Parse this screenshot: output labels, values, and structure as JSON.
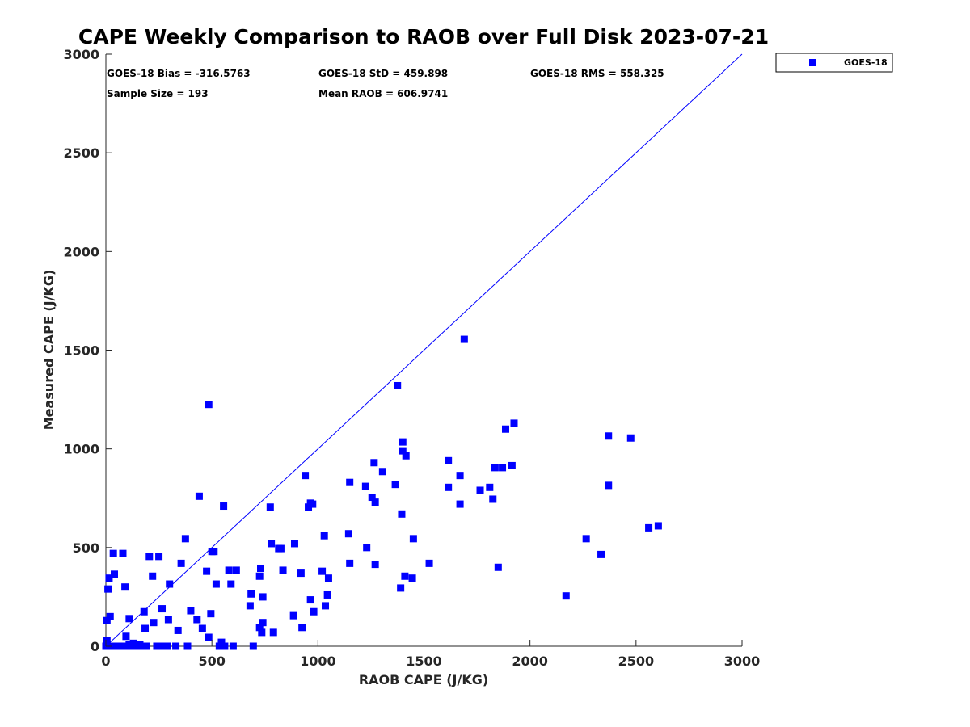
{
  "chart_data": {
    "type": "scatter",
    "title": "CAPE Weekly Comparison to RAOB over Full Disk 2023-07-21",
    "xlabel": "RAOB CAPE (J/KG)",
    "ylabel": "Measured CAPE (J/KG)",
    "xlim": [
      0,
      3000
    ],
    "ylim": [
      0,
      3000
    ],
    "x_ticks": [
      "0",
      "500",
      "1000",
      "1500",
      "2000",
      "2500",
      "3000"
    ],
    "y_ticks": [
      "0",
      "500",
      "1000",
      "1500",
      "2000",
      "2500",
      "3000"
    ],
    "grid": false,
    "legend_position": "outside top-right",
    "reference_line": {
      "x": [
        0,
        3000
      ],
      "y": [
        0,
        3000
      ],
      "color": "#0000ff"
    },
    "stats": [
      {
        "text": "GOES-18 Bias = -316.5763"
      },
      {
        "text": "GOES-18 StD = 459.898"
      },
      {
        "text": "GOES-18 RMS = 558.325"
      },
      {
        "text": "Sample Size = 193"
      },
      {
        "text": "Mean RAOB = 606.9741"
      }
    ],
    "series": [
      {
        "name": "GOES-18",
        "color": "#0000ff",
        "marker": "square",
        "points": [
          [
            0,
            0
          ],
          [
            5,
            30
          ],
          [
            5,
            130
          ],
          [
            10,
            290
          ],
          [
            15,
            345
          ],
          [
            20,
            150
          ],
          [
            25,
            0
          ],
          [
            30,
            0
          ],
          [
            35,
            470
          ],
          [
            40,
            365
          ],
          [
            45,
            0
          ],
          [
            50,
            0
          ],
          [
            60,
            0
          ],
          [
            70,
            0
          ],
          [
            80,
            470
          ],
          [
            85,
            0
          ],
          [
            90,
            300
          ],
          [
            95,
            50
          ],
          [
            100,
            0
          ],
          [
            110,
            140
          ],
          [
            110,
            10
          ],
          [
            120,
            0
          ],
          [
            130,
            15
          ],
          [
            140,
            0
          ],
          [
            150,
            0
          ],
          [
            160,
            10
          ],
          [
            170,
            0
          ],
          [
            180,
            175
          ],
          [
            185,
            90
          ],
          [
            190,
            0
          ],
          [
            205,
            455
          ],
          [
            220,
            355
          ],
          [
            225,
            120
          ],
          [
            240,
            0
          ],
          [
            250,
            455
          ],
          [
            260,
            0
          ],
          [
            265,
            190
          ],
          [
            280,
            0
          ],
          [
            290,
            0
          ],
          [
            295,
            135
          ],
          [
            300,
            315
          ],
          [
            330,
            0
          ],
          [
            340,
            80
          ],
          [
            355,
            420
          ],
          [
            375,
            545
          ],
          [
            385,
            0
          ],
          [
            400,
            180
          ],
          [
            430,
            135
          ],
          [
            440,
            760
          ],
          [
            455,
            90
          ],
          [
            475,
            380
          ],
          [
            485,
            1225
          ],
          [
            485,
            45
          ],
          [
            495,
            165
          ],
          [
            500,
            480
          ],
          [
            510,
            480
          ],
          [
            520,
            315
          ],
          [
            535,
            0
          ],
          [
            545,
            20
          ],
          [
            555,
            710
          ],
          [
            560,
            0
          ],
          [
            580,
            385
          ],
          [
            590,
            315
          ],
          [
            600,
            0
          ],
          [
            615,
            385
          ],
          [
            680,
            205
          ],
          [
            685,
            265
          ],
          [
            695,
            0
          ],
          [
            725,
            95
          ],
          [
            725,
            355
          ],
          [
            730,
            395
          ],
          [
            735,
            70
          ],
          [
            740,
            120
          ],
          [
            740,
            250
          ],
          [
            775,
            705
          ],
          [
            780,
            520
          ],
          [
            790,
            70
          ],
          [
            815,
            495
          ],
          [
            825,
            495
          ],
          [
            835,
            385
          ],
          [
            885,
            155
          ],
          [
            890,
            520
          ],
          [
            920,
            370
          ],
          [
            925,
            95
          ],
          [
            940,
            865
          ],
          [
            955,
            705
          ],
          [
            965,
            235
          ],
          [
            965,
            725
          ],
          [
            975,
            720
          ],
          [
            980,
            175
          ],
          [
            1020,
            380
          ],
          [
            1030,
            560
          ],
          [
            1035,
            205
          ],
          [
            1045,
            260
          ],
          [
            1050,
            345
          ],
          [
            1145,
            570
          ],
          [
            1150,
            830
          ],
          [
            1150,
            420
          ],
          [
            1225,
            810
          ],
          [
            1230,
            500
          ],
          [
            1255,
            755
          ],
          [
            1265,
            930
          ],
          [
            1270,
            730
          ],
          [
            1270,
            415
          ],
          [
            1305,
            885
          ],
          [
            1365,
            820
          ],
          [
            1375,
            1320
          ],
          [
            1390,
            295
          ],
          [
            1395,
            670
          ],
          [
            1400,
            990
          ],
          [
            1400,
            1035
          ],
          [
            1410,
            355
          ],
          [
            1415,
            965
          ],
          [
            1445,
            345
          ],
          [
            1450,
            545
          ],
          [
            1525,
            420
          ],
          [
            1615,
            940
          ],
          [
            1615,
            805
          ],
          [
            1670,
            865
          ],
          [
            1670,
            720
          ],
          [
            1690,
            1555
          ],
          [
            1765,
            790
          ],
          [
            1810,
            805
          ],
          [
            1825,
            745
          ],
          [
            1835,
            905
          ],
          [
            1850,
            400
          ],
          [
            1870,
            905
          ],
          [
            1885,
            1100
          ],
          [
            1915,
            915
          ],
          [
            1925,
            1130
          ],
          [
            2170,
            255
          ],
          [
            2265,
            545
          ],
          [
            2335,
            465
          ],
          [
            2370,
            1065
          ],
          [
            2370,
            815
          ],
          [
            2475,
            1055
          ],
          [
            2560,
            600
          ],
          [
            2605,
            610
          ]
        ]
      }
    ]
  }
}
